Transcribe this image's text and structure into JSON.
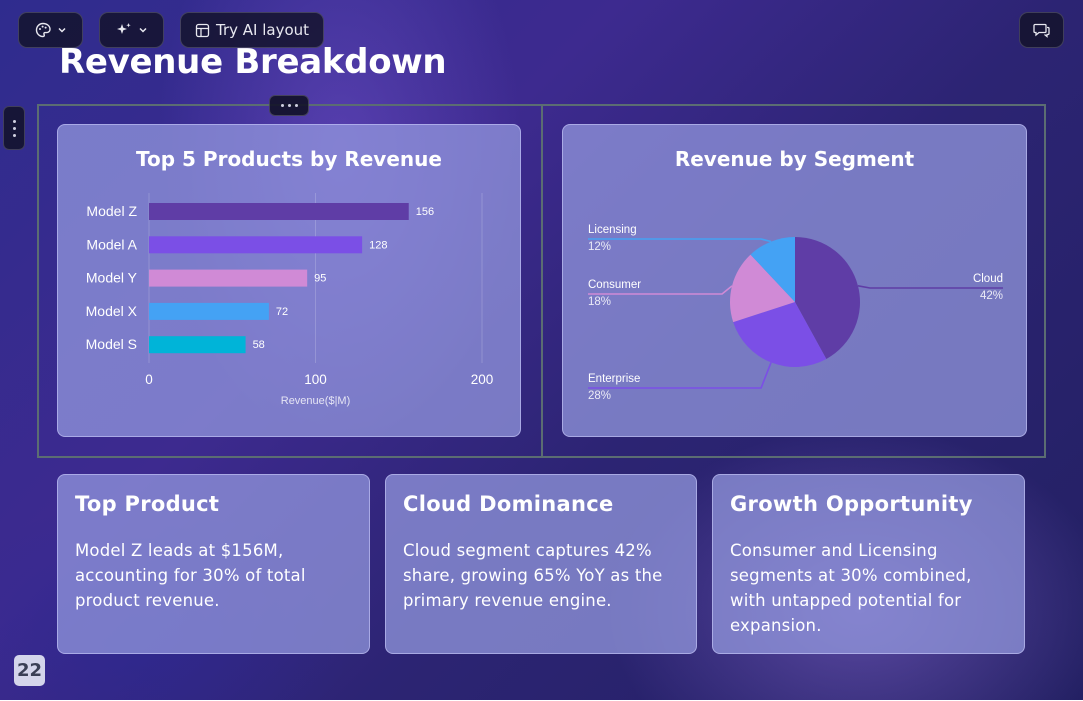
{
  "toolbar": {
    "theme_icon": "palette-icon",
    "ai_icon": "sparkle-icon",
    "layout_label": "Try AI layout",
    "layout_icon": "layout-icon",
    "comment_icon": "comment-icon"
  },
  "slide": {
    "title": "Revenue Breakdown",
    "page_number": "22"
  },
  "colors": {
    "bar_model_z": "#5f3da6",
    "bar_model_a": "#7b4fe6",
    "bar_model_y": "#d08ad6",
    "bar_model_x": "#44a2f4",
    "bar_model_s": "#00b4d8",
    "pie_cloud": "#5f3da6",
    "pie_enterprise": "#7b4fe6",
    "pie_consumer": "#d08ad6",
    "pie_licensing": "#44a2f4"
  },
  "chart_data": [
    {
      "type": "bar",
      "orientation": "horizontal",
      "title": "Top 5 Products by Revenue",
      "categories": [
        "Model Z",
        "Model A",
        "Model Y",
        "Model X",
        "Model S"
      ],
      "values": [
        156,
        128,
        95,
        72,
        58
      ],
      "value_labels": [
        "156",
        "128",
        "95",
        "72",
        "58"
      ],
      "xlabel": "Revenue($|M)",
      "ylabel": "",
      "xlim": [
        0,
        200
      ],
      "xticks": [
        "0",
        "100",
        "200"
      ],
      "grid": true
    },
    {
      "type": "pie",
      "title": "Revenue by Segment",
      "slices": [
        {
          "label": "Cloud",
          "value": 42,
          "pct_label": "42%"
        },
        {
          "label": "Enterprise",
          "value": 28,
          "pct_label": "28%"
        },
        {
          "label": "Consumer",
          "value": 18,
          "pct_label": "18%"
        },
        {
          "label": "Licensing",
          "value": 12,
          "pct_label": "12%"
        }
      ]
    }
  ],
  "insights": [
    {
      "title": "Top Product",
      "body": "Model Z leads at $156M, accounting for 30% of total product revenue."
    },
    {
      "title": "Cloud Dominance",
      "body": "Cloud segment captures 42% share, growing 65% YoY as the primary revenue engine."
    },
    {
      "title": "Growth Opportunity",
      "body": "Consumer and Licensing segments at 30% combined, with untapped potential for expansion."
    }
  ]
}
